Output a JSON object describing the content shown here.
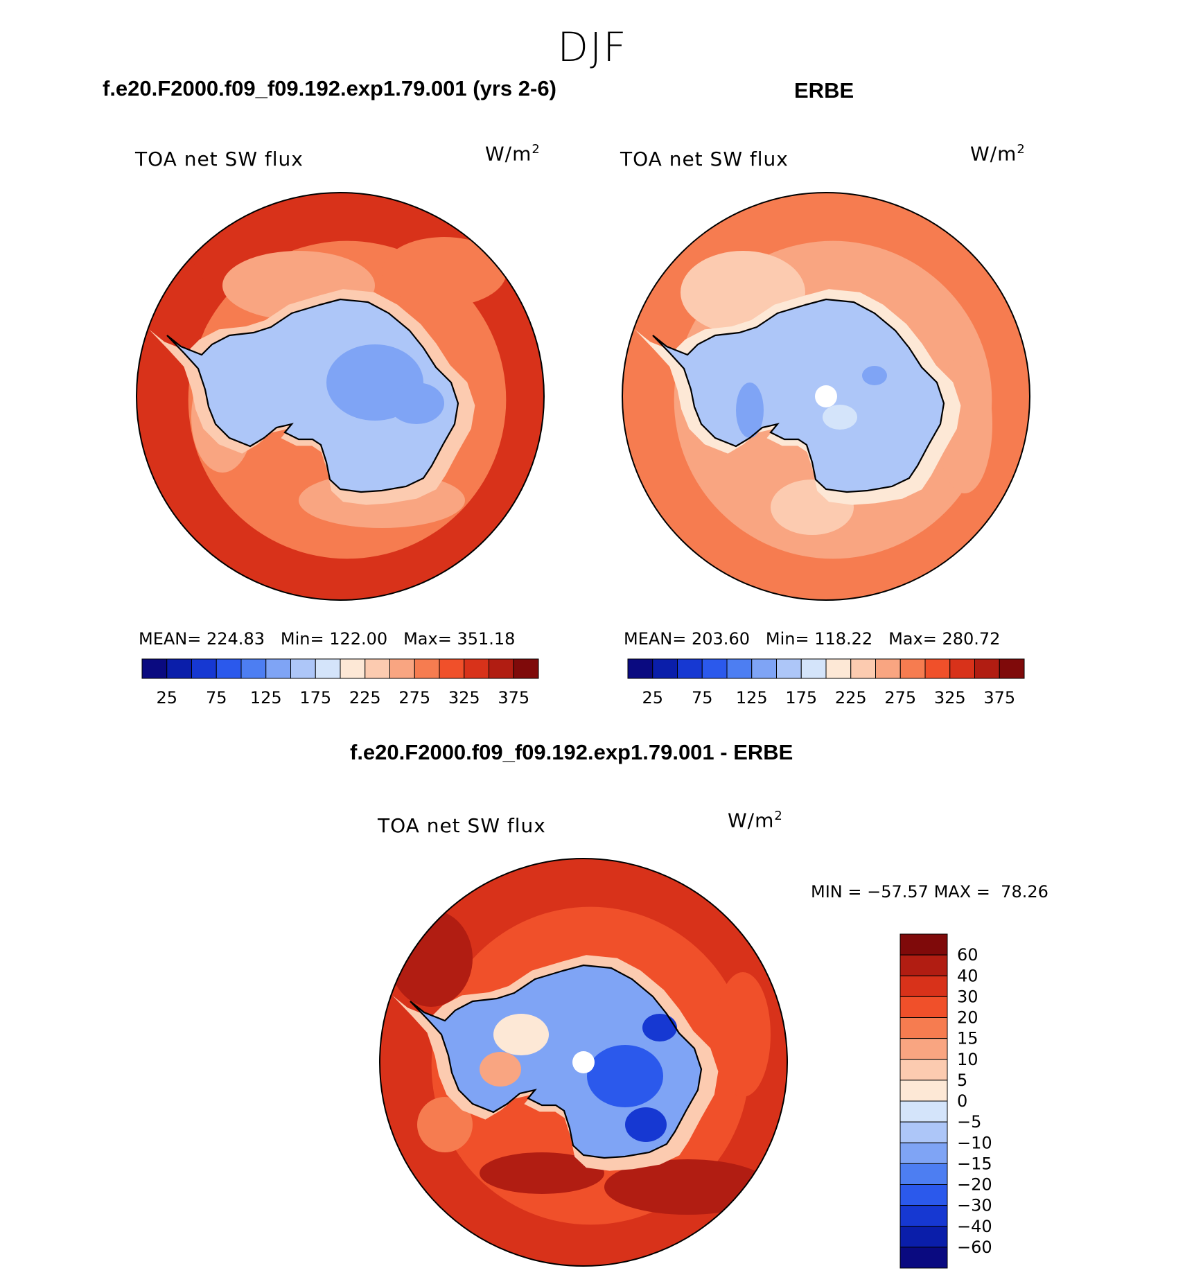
{
  "figure": {
    "season": "DJF",
    "titles": {
      "model": "f.e20.F2000.f09_f09.192.exp1.79.001 (yrs 2-6)",
      "obs": "ERBE",
      "diff": "f.e20.F2000.f09_f09.192.exp1.79.001 - ERBE"
    }
  },
  "chart_data": [
    {
      "type": "heatmap",
      "projection": "south-polar-stereographic",
      "title": "f.e20.F2000.f09_f09.192.exp1.79.001 (yrs 2-6)",
      "variable": "TOA net SW flux",
      "units_base": "W/m",
      "units_exp": "2",
      "stats": {
        "mean_label": "MEAN=",
        "mean": "224.83",
        "min_label": "Min=",
        "min": "122.00",
        "max_label": "Max=",
        "max": "351.18"
      },
      "colorbar": {
        "orientation": "horizontal",
        "colors": [
          "#0a0a80",
          "#0a1eaa",
          "#1638d2",
          "#2b59ec",
          "#4d7ef2",
          "#7fa4f5",
          "#adc6f8",
          "#d4e4fa",
          "#fde8d6",
          "#fccbb0",
          "#f9a581",
          "#f67c50",
          "#f0502a",
          "#d8321a",
          "#b11d12",
          "#7f0a0a"
        ],
        "tick_labels": [
          "25",
          "75",
          "125",
          "175",
          "225",
          "275",
          "325",
          "375"
        ]
      },
      "regions": {
        "ocean_outer": 325,
        "ocean_mid": 275,
        "sea_ice_edge": 225,
        "continent": 150,
        "plateau": 125
      }
    },
    {
      "type": "heatmap",
      "projection": "south-polar-stereographic",
      "title": "ERBE",
      "variable": "TOA net SW flux",
      "units_base": "W/m",
      "units_exp": "2",
      "stats": {
        "mean_label": "MEAN=",
        "mean": "203.60",
        "min_label": "Min=",
        "min": "118.22",
        "max_label": "Max=",
        "max": "280.72"
      },
      "colorbar": {
        "orientation": "horizontal",
        "colors": [
          "#0a0a80",
          "#0a1eaa",
          "#1638d2",
          "#2b59ec",
          "#4d7ef2",
          "#7fa4f5",
          "#adc6f8",
          "#d4e4fa",
          "#fde8d6",
          "#fccbb0",
          "#f9a581",
          "#f67c50",
          "#f0502a",
          "#d8321a",
          "#b11d12",
          "#7f0a0a"
        ],
        "tick_labels": [
          "25",
          "75",
          "125",
          "175",
          "225",
          "275",
          "325",
          "375"
        ]
      },
      "regions": {
        "ocean_outer": 275,
        "ocean_mid": 250,
        "sea_ice_edge": 200,
        "continent": 150,
        "plateau": 150
      }
    },
    {
      "type": "heatmap",
      "projection": "south-polar-stereographic",
      "title": "f.e20.F2000.f09_f09.192.exp1.79.001 - ERBE",
      "variable": "TOA net SW flux",
      "units_base": "W/m",
      "units_exp": "2",
      "stats": {
        "min_label": "MIN =",
        "min": "−57.57",
        "max_label": "MAX =",
        "max": "78.26"
      },
      "colorbar": {
        "orientation": "vertical",
        "colors_top_to_bottom": [
          "#7f0a0a",
          "#b11d12",
          "#d8321a",
          "#f0502a",
          "#f67c50",
          "#f9a581",
          "#fccbb0",
          "#fde8d6",
          "#d4e4fa",
          "#adc6f8",
          "#7fa4f5",
          "#4d7ef2",
          "#2b59ec",
          "#1638d2",
          "#0a1eaa",
          "#0a0a80"
        ],
        "tick_labels_top_to_bottom": [
          "60",
          "40",
          "30",
          "20",
          "15",
          "10",
          "5",
          "0",
          "−5",
          "−10",
          "−15",
          "−20",
          "−30",
          "−40",
          "−60"
        ]
      },
      "regions": {
        "ocean_outer": 30,
        "ocean_mid": 20,
        "coast": 5,
        "continent": -15,
        "plateau": -30
      }
    }
  ]
}
